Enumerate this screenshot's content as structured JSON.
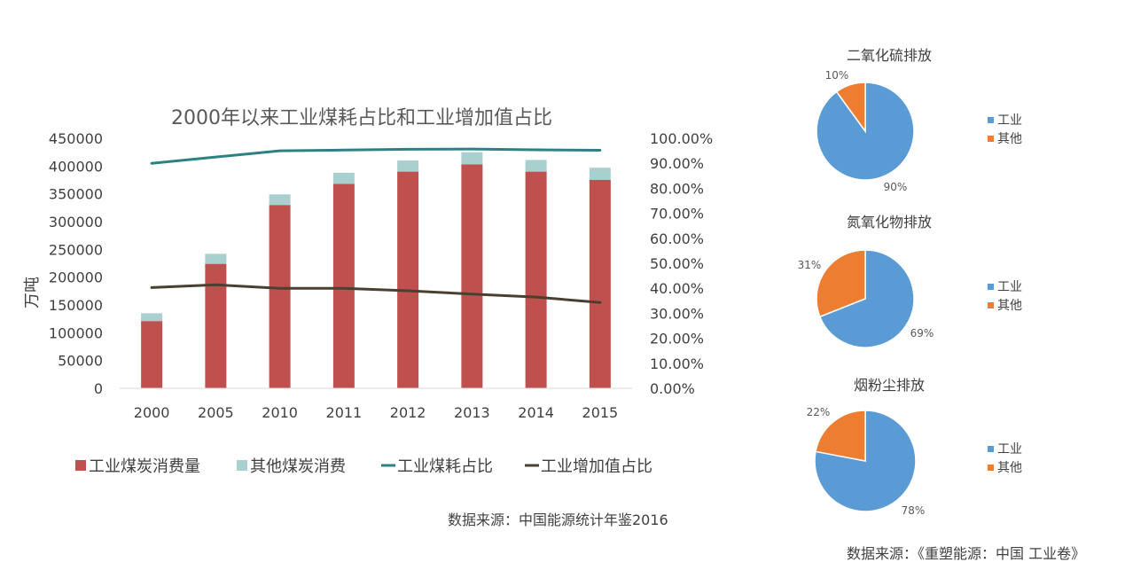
{
  "chart_data": [
    {
      "type": "bar",
      "title": "2000年以来工业煤耗占比和工业增加值占比",
      "categories": [
        "2000",
        "2005",
        "2010",
        "2011",
        "2012",
        "2013",
        "2014",
        "2015"
      ],
      "ylabel": "万吨",
      "ylim": [
        0,
        450000
      ],
      "yticks": [
        "450000",
        "400000",
        "350000",
        "300000",
        "250000",
        "200000",
        "150000",
        "100000",
        "50000",
        "0"
      ],
      "y2lim": [
        0,
        100
      ],
      "y2ticks": [
        "100.00%",
        "90.00%",
        "80.00%",
        "70.00%",
        "60.00%",
        "50.00%",
        "40.00%",
        "30.00%",
        "20.00%",
        "10.00%",
        "0.00%"
      ],
      "stacked": true,
      "series": [
        {
          "name": "工业煤炭消费量",
          "kind": "bar",
          "axis": "left",
          "color": "#c0504d",
          "values": [
            121000,
            224000,
            330000,
            368000,
            390000,
            403000,
            390000,
            375000
          ]
        },
        {
          "name": "其他煤炭消费",
          "kind": "bar",
          "axis": "left",
          "color": "#a9d0ce",
          "values": [
            14000,
            18000,
            19000,
            20000,
            20000,
            22000,
            21000,
            22000
          ]
        },
        {
          "name": "工业煤耗占比",
          "kind": "line",
          "axis": "right",
          "color": "#2e8183",
          "values": [
            90,
            92.5,
            95,
            95.3,
            95.6,
            95.7,
            95.4,
            95.2
          ]
        },
        {
          "name": "工业增加值占比",
          "kind": "line",
          "axis": "right",
          "color": "#4a4031",
          "values": [
            40.3,
            41.4,
            40,
            40,
            39,
            37.7,
            36.5,
            34.3
          ]
        }
      ],
      "legend_position": "bottom"
    },
    {
      "type": "pie",
      "title": "二氧化硫排放",
      "categories": [
        "工业",
        "其他"
      ],
      "values": [
        90,
        10
      ],
      "labels": [
        "90%",
        "10%"
      ],
      "colors": [
        "#5b9bd5",
        "#ed7d31"
      ],
      "legend_position": "right"
    },
    {
      "type": "pie",
      "title": "氮氧化物排放",
      "categories": [
        "工业",
        "其他"
      ],
      "values": [
        69,
        31
      ],
      "labels": [
        "69%",
        "31%"
      ],
      "colors": [
        "#5b9bd5",
        "#ed7d31"
      ],
      "legend_position": "right"
    },
    {
      "type": "pie",
      "title": "烟粉尘排放",
      "categories": [
        "工业",
        "其他"
      ],
      "values": [
        78,
        22
      ],
      "labels": [
        "78%",
        "22%"
      ],
      "colors": [
        "#5b9bd5",
        "#ed7d31"
      ],
      "legend_position": "right"
    }
  ],
  "sources": {
    "left": "数据来源：中国能源统计年鉴2016",
    "right": "数据来源：《重塑能源：中国 工业卷》"
  }
}
